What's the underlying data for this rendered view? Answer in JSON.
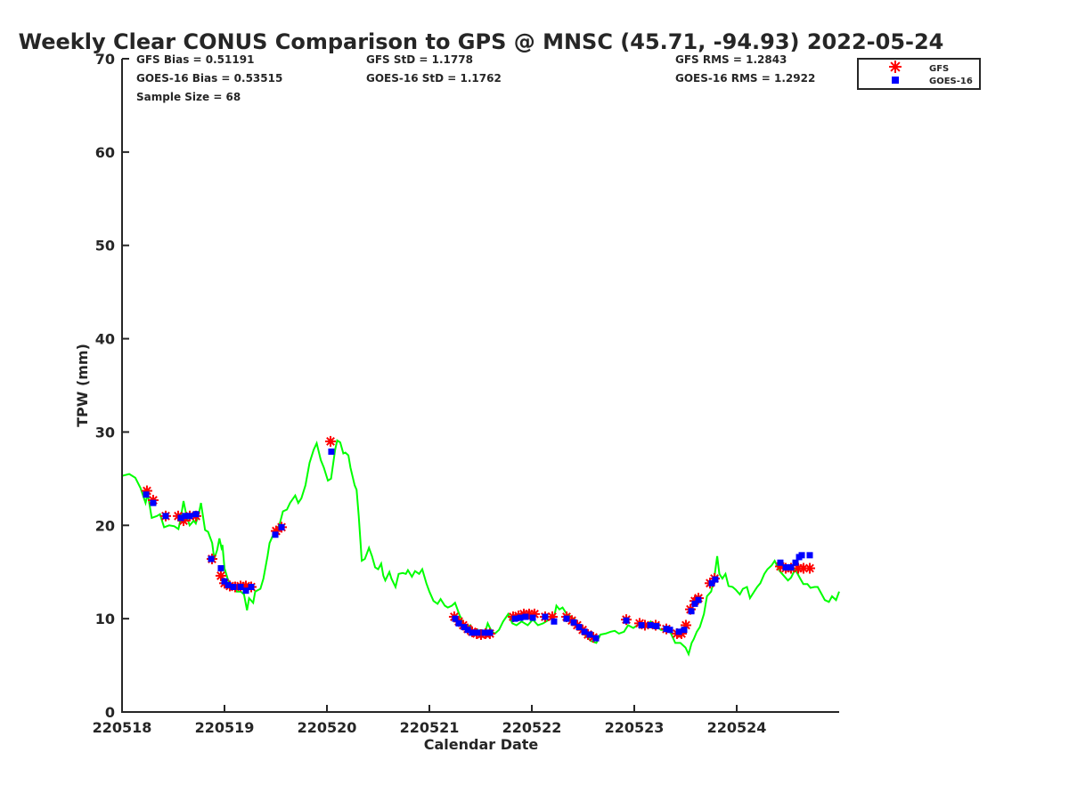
{
  "chart_data": {
    "type": "scatter",
    "title": "Weekly Clear CONUS Comparison to GPS @ MNSC (45.71, -94.93) 2022-05-24",
    "xlabel": "Calendar Date",
    "ylabel": "TPW (mm)",
    "xlim": [
      0,
      7
    ],
    "ylim": [
      0,
      70
    ],
    "x_units": "days since 220518",
    "x_ticks": [
      {
        "v": 0,
        "label": "220518"
      },
      {
        "v": 1,
        "label": "220519"
      },
      {
        "v": 2,
        "label": "220520"
      },
      {
        "v": 3,
        "label": "220521"
      },
      {
        "v": 4,
        "label": "220522"
      },
      {
        "v": 5,
        "label": "220523"
      },
      {
        "v": 6,
        "label": "220524"
      }
    ],
    "y_ticks": [
      {
        "v": 0,
        "label": "0"
      },
      {
        "v": 10,
        "label": "10"
      },
      {
        "v": 20,
        "label": "20"
      },
      {
        "v": 30,
        "label": "30"
      },
      {
        "v": 40,
        "label": "40"
      },
      {
        "v": 50,
        "label": "50"
      },
      {
        "v": 60,
        "label": "60"
      },
      {
        "v": 70,
        "label": "70"
      }
    ],
    "grid": false,
    "legend_position": "top-right",
    "stats": {
      "gfs_bias": "GFS Bias = 0.51191",
      "goes_bias": "GOES-16 Bias = 0.53515",
      "sample_size": "Sample Size = 68",
      "gfs_std": "GFS StD = 1.1778",
      "goes_std": "GOES-16 StD = 1.1762",
      "gfs_rms": "GFS RMS = 1.2843",
      "goes_rms": "GOES-16 RMS = 1.2922"
    },
    "series": [
      {
        "name": "GPS",
        "kind": "line",
        "color": "#00ff00",
        "legend": false,
        "x": [
          0,
          0.07,
          0.13,
          0.18,
          0.23,
          0.25,
          0.29,
          0.34,
          0.37,
          0.41,
          0.46,
          0.51,
          0.55,
          0.57,
          0.6,
          0.63,
          0.66,
          0.7,
          0.72,
          0.75,
          0.77,
          0.81,
          0.84,
          0.88,
          0.9,
          0.93,
          0.95,
          0.97,
          0.98,
          1.0,
          1.03,
          1.05,
          1.09,
          1.12,
          1.16,
          1.19,
          1.22,
          1.24,
          1.28,
          1.3,
          1.35,
          1.38,
          1.42,
          1.44,
          1.48,
          1.51,
          1.54,
          1.57,
          1.61,
          1.64,
          1.69,
          1.72,
          1.75,
          1.79,
          1.83,
          1.87,
          1.9,
          1.94,
          1.97,
          2.01,
          2.04,
          2.08,
          2.1,
          2.13,
          2.16,
          2.18,
          2.21,
          2.23,
          2.27,
          2.29,
          2.31,
          2.34,
          2.37,
          2.41,
          2.44,
          2.47,
          2.5,
          2.53,
          2.55,
          2.57,
          2.61,
          2.63,
          2.67,
          2.7,
          2.74,
          2.77,
          2.79,
          2.83,
          2.86,
          2.9,
          2.93,
          2.97,
          3.0,
          3.04,
          3.08,
          3.11,
          3.15,
          3.18,
          3.22,
          3.25,
          3.29,
          3.33,
          3.37,
          3.4,
          3.43,
          3.47,
          3.5,
          3.54,
          3.57,
          3.61,
          3.64,
          3.68,
          3.72,
          3.77,
          3.81,
          3.85,
          3.9,
          3.96,
          4.01,
          4.06,
          4.11,
          4.17,
          4.22,
          4.24,
          4.27,
          4.3,
          4.34,
          4.37,
          4.43,
          4.48,
          4.53,
          4.58,
          4.63,
          4.67,
          4.72,
          4.77,
          4.81,
          4.85,
          4.9,
          4.94,
          4.99,
          5.03,
          5.07,
          5.11,
          5.16,
          5.19,
          5.23,
          5.26,
          5.3,
          5.35,
          5.4,
          5.45,
          5.5,
          5.53,
          5.56,
          5.58,
          5.61,
          5.64,
          5.68,
          5.71,
          5.75,
          5.78,
          5.81,
          5.83,
          5.86,
          5.89,
          5.92,
          5.96,
          5.99,
          6.03,
          6.06,
          6.1,
          6.13,
          6.17,
          6.2,
          6.23,
          6.27,
          6.3,
          6.34,
          6.37,
          6.42,
          6.46,
          6.5,
          6.53,
          6.57,
          6.62,
          6.65,
          6.69,
          6.72,
          6.76,
          6.79,
          6.83,
          6.86,
          6.9,
          6.93,
          6.97,
          7.0
        ],
        "y": [
          25.3,
          25.5,
          25.1,
          24.0,
          22.4,
          23.4,
          20.8,
          21.0,
          21.2,
          19.8,
          20.0,
          19.9,
          19.6,
          20.6,
          22.6,
          21.0,
          20.0,
          20.5,
          20.2,
          21.3,
          22.4,
          19.5,
          19.3,
          18.1,
          16.4,
          17.4,
          18.6,
          17.6,
          17.9,
          15.4,
          14.3,
          13.8,
          13.4,
          12.9,
          12.9,
          12.6,
          10.9,
          12.2,
          11.7,
          12.9,
          13.2,
          14.3,
          16.7,
          18.1,
          19.1,
          19.5,
          20.2,
          21.5,
          21.7,
          22.4,
          23.2,
          22.4,
          22.9,
          24.3,
          26.7,
          28.1,
          28.8,
          27.0,
          26.2,
          24.8,
          25.0,
          28.1,
          29.1,
          28.9,
          27.7,
          27.8,
          27.5,
          26.2,
          24.3,
          23.8,
          21.0,
          16.2,
          16.4,
          17.6,
          16.7,
          15.5,
          15.3,
          15.9,
          14.6,
          14.1,
          15.0,
          14.3,
          13.4,
          14.8,
          14.9,
          14.8,
          15.2,
          14.5,
          15.1,
          14.8,
          15.3,
          13.8,
          12.9,
          11.9,
          11.6,
          12.1,
          11.4,
          11.2,
          11.4,
          11.7,
          10.5,
          9.5,
          9.1,
          9.3,
          8.4,
          8.8,
          8.1,
          8.4,
          9.5,
          8.6,
          8.4,
          8.8,
          9.7,
          10.5,
          9.5,
          9.3,
          9.7,
          9.3,
          9.9,
          9.3,
          9.5,
          9.9,
          10.3,
          11.4,
          11.0,
          11.2,
          10.5,
          10.3,
          9.8,
          8.8,
          8.1,
          7.6,
          7.4,
          8.3,
          8.4,
          8.6,
          8.7,
          8.4,
          8.6,
          9.3,
          9.0,
          9.3,
          9.6,
          9.1,
          9.7,
          9.5,
          9.1,
          8.8,
          8.8,
          8.6,
          7.4,
          7.4,
          6.9,
          6.2,
          7.4,
          7.8,
          8.6,
          9.1,
          10.5,
          12.4,
          12.9,
          14.3,
          16.7,
          14.8,
          14.3,
          14.8,
          13.5,
          13.4,
          13.1,
          12.6,
          13.2,
          13.4,
          12.2,
          12.9,
          13.4,
          13.8,
          14.8,
          15.3,
          15.7,
          16.2,
          15.1,
          14.6,
          14.1,
          14.4,
          15.3,
          14.3,
          13.7,
          13.7,
          13.3,
          13.4,
          13.4,
          12.6,
          12.0,
          11.8,
          12.4,
          12.0,
          12.9
        ]
      },
      {
        "name": "GFS",
        "kind": "star",
        "color": "#ff0000",
        "legend": true,
        "x": [
          0.243,
          0.304,
          0.426,
          0.548,
          0.6,
          0.661,
          0.722,
          0.878,
          0.965,
          1.0,
          1.052,
          1.104,
          1.157,
          1.209,
          1.261,
          1.504,
          1.557,
          2.035,
          3.243,
          3.287,
          3.33,
          3.374,
          3.417,
          3.461,
          3.504,
          3.548,
          3.591,
          3.817,
          3.87,
          3.922,
          3.974,
          4.026,
          4.13,
          4.2,
          4.339,
          4.391,
          4.443,
          4.496,
          4.548,
          4.6,
          4.922,
          5.052,
          5.104,
          5.209,
          5.313,
          5.417,
          5.461,
          5.504,
          5.548,
          5.591,
          5.626,
          5.739,
          5.783,
          6.426,
          6.478,
          6.53,
          6.6,
          6.652,
          6.713
        ],
        "y": [
          23.7,
          22.7,
          21.0,
          21.0,
          20.5,
          21.0,
          21.0,
          16.4,
          14.6,
          13.8,
          13.5,
          13.4,
          13.5,
          13.5,
          13.4,
          19.4,
          19.8,
          29.0,
          10.2,
          9.7,
          9.3,
          8.9,
          8.6,
          8.4,
          8.3,
          8.4,
          8.4,
          10.2,
          10.3,
          10.5,
          10.5,
          10.5,
          10.2,
          10.2,
          10.2,
          9.8,
          9.3,
          8.8,
          8.3,
          8.0,
          9.9,
          9.5,
          9.3,
          9.3,
          8.9,
          8.4,
          8.4,
          9.3,
          11.0,
          11.9,
          12.2,
          13.8,
          14.3,
          15.6,
          15.4,
          15.4,
          15.4,
          15.4,
          15.4
        ]
      },
      {
        "name": "GOES-16",
        "kind": "square",
        "color": "#0000ff",
        "legend": true,
        "x": [
          0.235,
          0.304,
          0.426,
          0.574,
          0.617,
          0.661,
          0.722,
          0.87,
          0.965,
          1.0,
          1.035,
          1.087,
          1.157,
          1.209,
          1.261,
          1.496,
          1.557,
          2.043,
          3.252,
          3.287,
          3.339,
          3.374,
          3.417,
          3.47,
          3.539,
          3.591,
          3.835,
          3.887,
          3.939,
          4.009,
          4.13,
          4.217,
          4.339,
          4.409,
          4.461,
          4.513,
          4.565,
          4.626,
          4.922,
          5.07,
          5.157,
          5.217,
          5.313,
          5.348,
          5.435,
          5.487,
          5.557,
          5.591,
          5.626,
          5.757,
          5.791,
          6.426,
          6.478,
          6.53,
          6.574,
          6.609,
          6.635,
          6.713
        ],
        "y": [
          23.3,
          22.4,
          21.0,
          20.8,
          21.0,
          21.0,
          21.2,
          16.4,
          15.4,
          14.0,
          13.6,
          13.4,
          13.4,
          13.0,
          13.4,
          19.0,
          19.8,
          27.9,
          10.0,
          9.5,
          9.1,
          8.8,
          8.5,
          8.5,
          8.5,
          8.5,
          10.0,
          10.1,
          10.2,
          10.1,
          10.2,
          9.7,
          10.0,
          9.6,
          9.1,
          8.6,
          8.3,
          7.9,
          9.8,
          9.3,
          9.3,
          9.2,
          8.9,
          8.8,
          8.6,
          8.8,
          10.8,
          11.6,
          12.0,
          13.8,
          14.2,
          16.0,
          15.5,
          15.5,
          16.0,
          16.6,
          16.8,
          16.8
        ]
      }
    ]
  }
}
